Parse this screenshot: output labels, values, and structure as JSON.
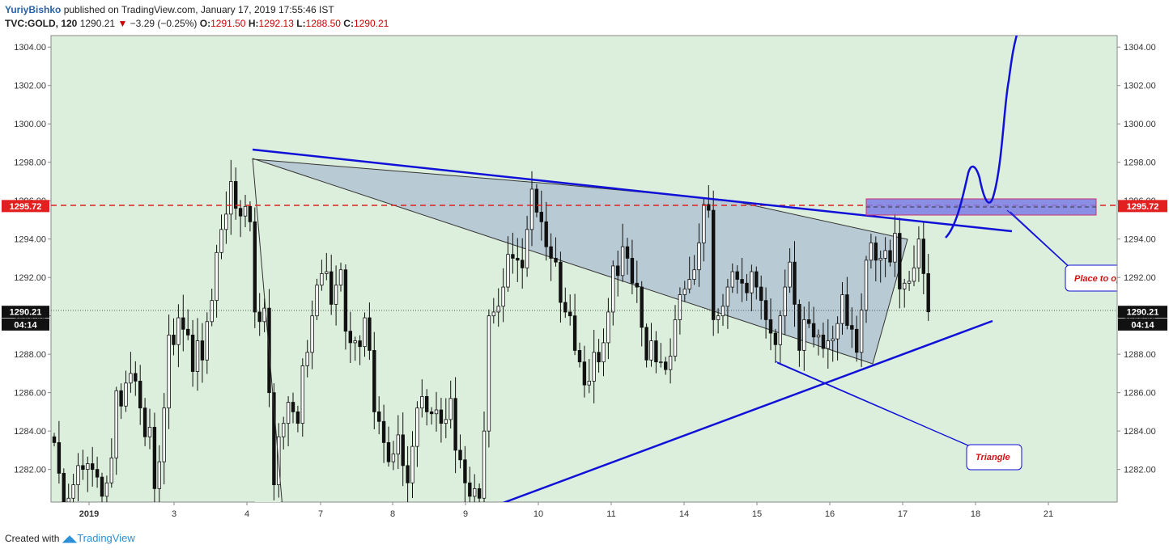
{
  "header": {
    "author": "YuriyBishko",
    "published": "published on TradingView.com, January 17, 2019 17:55:46 IST",
    "symbol": "TVC:GOLD, 120",
    "last": "1290.21",
    "change": "−3.29 (−0.25%)",
    "o_label": "O:",
    "o_value": "1291.50",
    "h_label": "H:",
    "h_value": "1292.13",
    "l_label": "L:",
    "l_value": "1288.50",
    "c_label": "C:",
    "c_value": "1290.21"
  },
  "footer": {
    "created_with": "Created with",
    "brand": "TradingView"
  },
  "chart_data": {
    "type": "candlestick",
    "ylim": [
      1280.3,
      1304.6
    ],
    "y_ticks": [
      "1282.00",
      "1284.00",
      "1286.00",
      "1288.00",
      "1290.00",
      "1292.00",
      "1294.00",
      "1296.00",
      "1298.00",
      "1300.00",
      "1302.00",
      "1304.00"
    ],
    "x_ticks": [
      "2019",
      "3",
      "4",
      "7",
      "8",
      "9",
      "10",
      "11",
      "14",
      "15",
      "16",
      "17",
      "18",
      "21"
    ],
    "price_tags": [
      {
        "label": "1295.72",
        "value": 1295.72,
        "color": "#e22020"
      },
      {
        "label": "1290.21",
        "value": 1290.21,
        "color": "#111111"
      },
      {
        "label": "04:14",
        "value": 1289.55,
        "color": "#111111"
      }
    ],
    "annotations": [
      {
        "text": "Place to open long position"
      },
      {
        "text": "Triangle"
      }
    ],
    "colors": {
      "background": "#dcefdc",
      "up": "#ffffff",
      "down": "#111111",
      "trendline": "#1010d8",
      "triangle": "#b8cad3",
      "level": "#e22020"
    },
    "closes": [
      1283.4,
      1281.8,
      1280.3,
      1280.5,
      1281.2,
      1282.2,
      1282.0,
      1282.3,
      1282.0,
      1281.6,
      1280.6,
      1281.3,
      1282.6,
      1286.1,
      1285.3,
      1286.5,
      1287.0,
      1286.6,
      1285.2,
      1283.7,
      1284.2,
      1281.0,
      1282.4,
      1285.2,
      1289.0,
      1288.5,
      1289.9,
      1289.3,
      1289.0,
      1287.1,
      1288.7,
      1287.7,
      1289.7,
      1290.8,
      1293.3,
      1294.5,
      1295.3,
      1297.0,
      1295.6,
      1295.2,
      1295.7,
      1294.9,
      1290.2,
      1289.7,
      1290.4,
      1286.0,
      1281.2,
      1283.7,
      1284.4,
      1285.5,
      1285.0,
      1284.4,
      1287.4,
      1288.1,
      1290.0,
      1291.6,
      1292.2,
      1292.3,
      1290.6,
      1291.6,
      1292.4,
      1289.2,
      1288.6,
      1288.7,
      1288.4,
      1289.9,
      1288.2,
      1285.0,
      1284.5,
      1283.4,
      1282.4,
      1282.8,
      1283.8,
      1282.2,
      1281.3,
      1283.2,
      1285.2,
      1285.8,
      1285.0,
      1284.9,
      1285.1,
      1284.4,
      1284.6,
      1285.7,
      1283.0,
      1282.5,
      1281.3,
      1280.6,
      1281.0,
      1280.5,
      1284.0,
      1290.0,
      1290.2,
      1290.5,
      1291.5,
      1293.2,
      1293.0,
      1292.9,
      1292.5,
      1294.5,
      1296.6,
      1295.4,
      1294.9,
      1293.6,
      1293.0,
      1292.8,
      1290.7,
      1290.2,
      1290.0,
      1288.2,
      1287.6,
      1286.4,
      1286.6,
      1288.1,
      1287.6,
      1288.6,
      1290.2,
      1292.6,
      1292.1,
      1293.6,
      1293.0,
      1291.7,
      1291.5,
      1289.4,
      1287.7,
      1288.7,
      1287.6,
      1287.6,
      1287.2,
      1287.9,
      1289.8,
      1291.1,
      1291.4,
      1291.9,
      1292.4,
      1293.8,
      1295.8,
      1295.5,
      1289.8,
      1290.0,
      1290.5,
      1291.5,
      1292.3,
      1291.9,
      1291.7,
      1291.2,
      1292.3,
      1291.5,
      1290.8,
      1289.8,
      1289.1,
      1288.5,
      1290.0,
      1291.5,
      1292.8,
      1290.6,
      1288.2,
      1289.8,
      1289.6,
      1288.9,
      1289.0,
      1288.3,
      1288.7,
      1288.8,
      1289.6,
      1291.1,
      1289.5,
      1289.3,
      1288.1,
      1290.3,
      1292.9,
      1293.8,
      1292.9,
      1293.0,
      1293.4,
      1292.8,
      1294.3,
      1291.4,
      1291.7,
      1291.8,
      1292.5,
      1294.0,
      1292.2,
      1290.21
    ]
  }
}
